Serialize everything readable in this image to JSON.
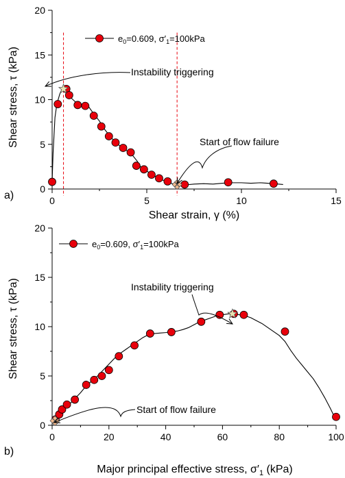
{
  "chart_data": [
    {
      "type": "scatter",
      "panel_label": "a)",
      "xlabel": "Shear strain, γ (%)",
      "ylabel": "Shear stress, τ (kPa)",
      "xlim": [
        0,
        15
      ],
      "ylim": [
        0,
        20
      ],
      "xticks": [
        "0",
        "5",
        "10",
        "15"
      ],
      "yticks": [
        "0",
        "5",
        "10",
        "15",
        "20"
      ],
      "grid": false,
      "legend_position": "top-left",
      "series": [
        {
          "name": "e0=0.609, σ′1=100kPa",
          "legend": {
            "e": "e",
            "e_sub": "0",
            "mid": "=0.609, σ′",
            "s_sub": "1",
            "end": "=100kPa"
          },
          "color": "#e8000b",
          "line": [
            [
              0,
              0.8
            ],
            [
              0.05,
              4
            ],
            [
              0.15,
              8
            ],
            [
              0.25,
              9.5
            ],
            [
              0.4,
              10.6
            ],
            [
              0.5,
              11.1
            ],
            [
              0.6,
              11.2
            ],
            [
              0.7,
              11.1
            ],
            [
              0.85,
              10.5
            ],
            [
              1.1,
              10
            ],
            [
              1.4,
              9.4
            ],
            [
              1.6,
              9.5
            ],
            [
              1.9,
              9.3
            ],
            [
              2.2,
              8.4
            ],
            [
              2.5,
              7.6
            ],
            [
              2.8,
              6.6
            ],
            [
              3.1,
              5.8
            ],
            [
              3.4,
              5.1
            ],
            [
              3.8,
              4.5
            ],
            [
              4.2,
              3.9
            ],
            [
              4.5,
              3.1
            ],
            [
              4.7,
              2.4
            ],
            [
              5.0,
              2.0
            ],
            [
              5.3,
              1.6
            ],
            [
              5.7,
              1.1
            ],
            [
              6.1,
              0.8
            ],
            [
              6.4,
              0.55
            ],
            [
              6.7,
              0.5
            ],
            [
              7.0,
              0.45
            ],
            [
              7.5,
              0.55
            ],
            [
              8.0,
              0.6
            ],
            [
              8.5,
              0.55
            ],
            [
              9.0,
              0.65
            ],
            [
              9.5,
              0.7
            ],
            [
              10.0,
              0.7
            ],
            [
              10.5,
              0.65
            ],
            [
              11.0,
              0.7
            ],
            [
              11.7,
              0.6
            ],
            [
              12.2,
              0.5
            ]
          ],
          "points": [
            [
              0,
              0.8
            ],
            [
              0.3,
              9.5
            ],
            [
              0.75,
              11.2
            ],
            [
              0.9,
              10.5
            ],
            [
              1.35,
              9.4
            ],
            [
              1.75,
              9.3
            ],
            [
              2.2,
              8.2
            ],
            [
              2.6,
              7.0
            ],
            [
              3.0,
              5.9
            ],
            [
              3.35,
              5.2
            ],
            [
              3.75,
              4.6
            ],
            [
              4.15,
              4.1
            ],
            [
              4.45,
              2.6
            ],
            [
              4.85,
              2.2
            ],
            [
              5.25,
              1.6
            ],
            [
              5.65,
              1.2
            ],
            [
              6.1,
              0.85
            ],
            [
              7.0,
              0.5
            ],
            [
              9.3,
              0.75
            ],
            [
              11.7,
              0.6
            ]
          ],
          "star_point": [
            0.6,
            11.2
          ],
          "flow_point": [
            6.6,
            0.5
          ]
        }
      ],
      "vlines": [
        0.6,
        6.6
      ],
      "annotations": [
        {
          "text": "Instability triggering",
          "x": 0.6,
          "y": 11.2
        },
        {
          "text": "Start of flow failure",
          "x": 6.6,
          "y": 0.5
        }
      ]
    },
    {
      "type": "scatter",
      "panel_label": "b)",
      "xlabel": "Major principal effective stress, σ′1 (kPa)",
      "ylabel": "Shear stress, τ (kPa)",
      "xlim": [
        0,
        100
      ],
      "ylim": [
        0,
        20
      ],
      "xticks": [
        "0",
        "20",
        "40",
        "60",
        "80",
        "100"
      ],
      "yticks": [
        "0",
        "5",
        "10",
        "15",
        "20"
      ],
      "grid": false,
      "legend_position": "top-left",
      "series": [
        {
          "name": "e0=0.609, σ′1=100kPa",
          "legend": {
            "e": "e",
            "e_sub": "0",
            "mid": "=0.609, σ′",
            "s_sub": "1",
            "end": "=100kPa"
          },
          "color": "#e8000b",
          "line": [
            [
              1,
              0.45
            ],
            [
              1.8,
              0.8
            ],
            [
              2.8,
              1.2
            ],
            [
              4.5,
              1.7
            ],
            [
              6,
              2.1
            ],
            [
              8,
              2.7
            ],
            [
              10,
              3.3
            ],
            [
              12,
              4.0
            ],
            [
              14,
              4.5
            ],
            [
              16,
              5.0
            ],
            [
              18,
              5.6
            ],
            [
              20,
              6.2
            ],
            [
              22,
              6.8
            ],
            [
              24,
              7.3
            ],
            [
              26,
              7.7
            ],
            [
              28,
              8.1
            ],
            [
              30,
              8.5
            ],
            [
              32,
              8.9
            ],
            [
              34,
              9.2
            ],
            [
              36,
              9.3
            ],
            [
              38,
              9.35
            ],
            [
              40,
              9.4
            ],
            [
              42,
              9.5
            ],
            [
              44,
              9.55
            ],
            [
              46,
              9.7
            ],
            [
              48,
              9.9
            ],
            [
              50,
              10.2
            ],
            [
              52,
              10.5
            ],
            [
              54,
              10.7
            ],
            [
              56,
              10.9
            ],
            [
              58,
              11.1
            ],
            [
              60,
              11.2
            ],
            [
              62,
              11.3
            ],
            [
              64,
              11.3
            ],
            [
              66,
              11.2
            ],
            [
              68,
              11.1
            ],
            [
              70,
              10.9
            ],
            [
              72,
              10.6
            ],
            [
              74,
              10.3
            ],
            [
              76,
              9.9
            ],
            [
              78,
              9.5
            ],
            [
              80,
              9.1
            ],
            [
              82,
              8.5
            ],
            [
              84,
              7.6
            ],
            [
              86,
              6.8
            ],
            [
              88,
              6.1
            ],
            [
              90,
              5.4
            ],
            [
              92,
              4.7
            ],
            [
              94,
              3.8
            ],
            [
              96,
              2.8
            ],
            [
              98,
              1.7
            ],
            [
              99,
              1.1
            ],
            [
              100,
              0.9
            ]
          ],
          "points": [
            [
              1.2,
              0.6
            ],
            [
              2.5,
              1.1
            ],
            [
              3.5,
              1.6
            ],
            [
              5.2,
              2.1
            ],
            [
              8.0,
              2.6
            ],
            [
              12.0,
              4.1
            ],
            [
              14.8,
              4.6
            ],
            [
              17.5,
              5.0
            ],
            [
              20.0,
              5.6
            ],
            [
              23.5,
              7.0
            ],
            [
              29.0,
              8.1
            ],
            [
              34.5,
              9.3
            ],
            [
              42.0,
              9.45
            ],
            [
              52.5,
              10.5
            ],
            [
              59.0,
              11.2
            ],
            [
              64.0,
              11.3
            ],
            [
              67.5,
              11.2
            ],
            [
              82.0,
              9.5
            ],
            [
              100.0,
              0.85
            ]
          ],
          "star_point": [
            63.5,
            11.3
          ],
          "flow_point": [
            1,
            0.45
          ]
        }
      ],
      "vlines": [],
      "annotations": [
        {
          "text": "Instability triggering",
          "x": 63.5,
          "y": 11.3
        },
        {
          "text": "Start of flow failure",
          "x": 1,
          "y": 0.45
        }
      ]
    }
  ]
}
